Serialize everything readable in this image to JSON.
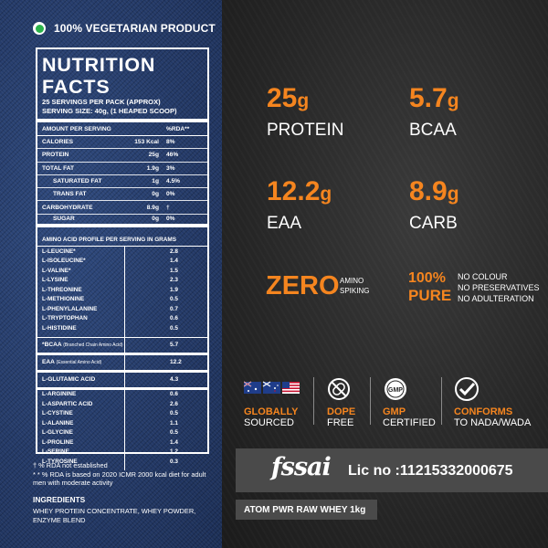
{
  "veg_label": "100% VEGETARIAN PRODUCT",
  "nutrition": {
    "title": "NUTRITION FACTS",
    "servings": "25 SERVINGS PER PACK (APPROX)",
    "serving_size": "SERVING SIZE: 40g, (1 HEAPED SCOOP)",
    "header_amount": "AMOUNT PER SERVING",
    "header_rda": "%RDA**",
    "rows": [
      {
        "name": "CALORIES",
        "value": "153 Kcal",
        "rda": "8%",
        "indent": false
      },
      {
        "name": "PROTEIN",
        "value": "25g",
        "rda": "46%",
        "indent": false
      },
      {
        "name": "TOTAL FAT",
        "value": "1.9g",
        "rda": "3%",
        "indent": false
      },
      {
        "name": "SATURATED FAT",
        "value": "1g",
        "rda": "4.5%",
        "indent": true
      },
      {
        "name": "TRANS FAT",
        "value": "0g",
        "rda": "0%",
        "indent": true
      },
      {
        "name": "CARBOHYDRATE",
        "value": "8.9g",
        "rda": "†",
        "indent": false
      },
      {
        "name": "SUGAR",
        "value": "0g",
        "rda": "0%",
        "indent": true
      }
    ],
    "amino_header": "AMINO ACID PROFILE PER SERVING IN GRAMS",
    "amino_group1": [
      {
        "name": "L-LEUCINE*",
        "value": "2.8"
      },
      {
        "name": "L-ISOLEUCINE*",
        "value": "1.4"
      },
      {
        "name": "L-VALINE*",
        "value": "1.5"
      },
      {
        "name": "L-LYSINE",
        "value": "2.3"
      },
      {
        "name": "L-THREONINE",
        "value": "1.9"
      },
      {
        "name": "L-METHIONINE",
        "value": "0.5"
      },
      {
        "name": "L-PHENYLALANINE",
        "value": "0.7"
      },
      {
        "name": "L-TRYPTOPHAN",
        "value": "0.6"
      },
      {
        "name": "L-HISTIDINE",
        "value": "0.5"
      }
    ],
    "bcaa": {
      "name": "*BCAA",
      "note": "(Branched Chain Amino Acid)",
      "value": "5.7"
    },
    "eaa": {
      "name": "EAA",
      "note": "(Essential Amino Acid)",
      "value": "12.2"
    },
    "glutamic": {
      "name": "L-GLUTAMIC ACID",
      "value": "4.3"
    },
    "amino_group2": [
      {
        "name": "L-ARGININE",
        "value": "0.6"
      },
      {
        "name": "L-ASPARTIC ACID",
        "value": "2.6"
      },
      {
        "name": "L-CYSTINE",
        "value": "0.5"
      },
      {
        "name": "L-ALANINE",
        "value": "1.1"
      },
      {
        "name": "L-GLYCINE",
        "value": "0.5"
      },
      {
        "name": "L-PROLINE",
        "value": "1.4"
      },
      {
        "name": "L-SERINE",
        "value": "1.2"
      },
      {
        "name": "L-TYROSINE",
        "value": "0.3"
      }
    ]
  },
  "notes": {
    "line1": "† % RDA not established",
    "line2": "* * % RDA is based on 2020 ICMR 2000 kcal diet for adult men with moderate activity"
  },
  "ingredients": {
    "title": "INGREDIENTS",
    "text": "WHEY PROTEIN CONCENTRATE, WHEY POWDER, ENZYME BLEND"
  },
  "stats": [
    {
      "num": "25",
      "unit": "g",
      "label": "PROTEIN"
    },
    {
      "num": "5.7",
      "unit": "g",
      "label": "BCAA"
    },
    {
      "num": "12.2",
      "unit": "g",
      "label": "EAA"
    },
    {
      "num": "8.9",
      "unit": "g",
      "label": "CARB"
    }
  ],
  "zero": {
    "big": "ZERO",
    "line1": "AMINO",
    "line2": "SPIKING"
  },
  "pure": {
    "big1": "100%",
    "big2": "PURE",
    "items": [
      "NO COLOUR",
      "NO PRESERVATIVES",
      "NO ADULTERATION"
    ]
  },
  "badges": [
    {
      "t1": "GLOBALLY",
      "t2": "SOURCED",
      "icon": "flags-icon"
    },
    {
      "t1": "DOPE",
      "t2": "FREE",
      "icon": "no-dope-icon"
    },
    {
      "t1": "GMP",
      "t2": "CERTIFIED",
      "icon": "gmp-icon"
    },
    {
      "t1": "CONFORMS",
      "t2": "TO NADA/WADA",
      "icon": "check-icon"
    }
  ],
  "fssai_logo": "fssai",
  "license": "Lic no :11215332000675",
  "product_name": "ATOM PWR RAW WHEY 1kg",
  "colors": {
    "accent": "#f5851f",
    "denim": "#243a68",
    "dark": "#262626"
  }
}
